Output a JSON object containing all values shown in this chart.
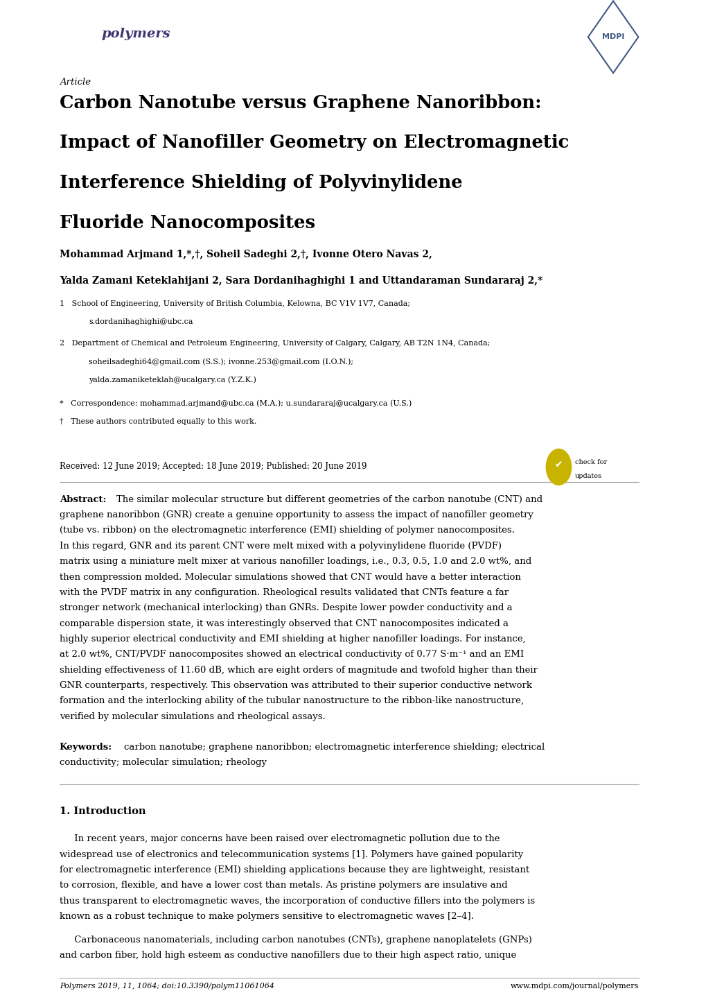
{
  "background_color": "#ffffff",
  "page_width": 10.2,
  "page_height": 14.42,
  "dpi": 100,
  "polymers_logo_color": "#3d3472",
  "mdpi_logo_color": "#3d5a80",
  "article_label": "Article",
  "title_line1": "Carbon Nanotube versus Graphene Nanoribbon:",
  "title_line2": "Impact of Nanofiller Geometry on Electromagnetic",
  "title_line3": "Interference Shielding of Polyvinylidene",
  "title_line4": "Fluoride Nanocomposites",
  "authors_line1": "Mohammad Arjmand 1,*,†, Soheil Sadeghi 2,†, Ivonne Otero Navas 2,",
  "authors_line2": "Yalda Zamani Keteklahijani 2, Sara Dordanihaghighi 1 and Uttandaraman Sundararaj 2,*",
  "received": "Received: 12 June 2019; Accepted: 18 June 2019; Published: 20 June 2019",
  "footer_left": "Polymers 2019, 11, 1064; doi:10.3390/polym11061064",
  "footer_right": "www.mdpi.com/journal/polymers",
  "text_color": "#000000",
  "abs_lines": [
    "The similar molecular structure but different geometries of the carbon nanotube (CNT) and",
    "graphene nanoribbon (GNR) create a genuine opportunity to assess the impact of nanofiller geometry",
    "(tube vs. ribbon) on the electromagnetic interference (EMI) shielding of polymer nanocomposites.",
    "In this regard, GNR and its parent CNT were melt mixed with a polyvinylidene fluoride (PVDF)",
    "matrix using a miniature melt mixer at various nanofiller loadings, i.e., 0.3, 0.5, 1.0 and 2.0 wt%, and",
    "then compression molded. Molecular simulations showed that CNT would have a better interaction",
    "with the PVDF matrix in any configuration. Rheological results validated that CNTs feature a far",
    "stronger network (mechanical interlocking) than GNRs. Despite lower powder conductivity and a",
    "comparable dispersion state, it was interestingly observed that CNT nanocomposites indicated a",
    "highly superior electrical conductivity and EMI shielding at higher nanofiller loadings. For instance,",
    "at 2.0 wt%, CNT/PVDF nanocomposites showed an electrical conductivity of 0.77 S·m⁻¹ and an EMI",
    "shielding effectiveness of 11.60 dB, which are eight orders of magnitude and twofold higher than their",
    "GNR counterparts, respectively. This observation was attributed to their superior conductive network",
    "formation and the interlocking ability of the tubular nanostructure to the ribbon-like nanostructure,",
    "verified by molecular simulations and rheological assays."
  ],
  "kw_line1": "carbon nanotube; graphene nanoribbon; electromagnetic interference shielding; electrical",
  "kw_line2": "conductivity; molecular simulation; rheology",
  "ip1_lines": [
    "     In recent years, major concerns have been raised over electromagnetic pollution due to the",
    "widespread use of electronics and telecommunication systems [1]. Polymers have gained popularity",
    "for electromagnetic interference (EMI) shielding applications because they are lightweight, resistant",
    "to corrosion, flexible, and have a lower cost than metals. As pristine polymers are insulative and",
    "thus transparent to electromagnetic waves, the incorporation of conductive fillers into the polymers is",
    "known as a robust technique to make polymers sensitive to electromagnetic waves [2–4]."
  ],
  "ip2_lines": [
    "     Carbonaceous nanomaterials, including carbon nanotubes (CNTs), graphene nanoplatelets (GNPs)",
    "and carbon fiber, hold high esteem as conductive nanofillers due to their high aspect ratio, unique"
  ]
}
